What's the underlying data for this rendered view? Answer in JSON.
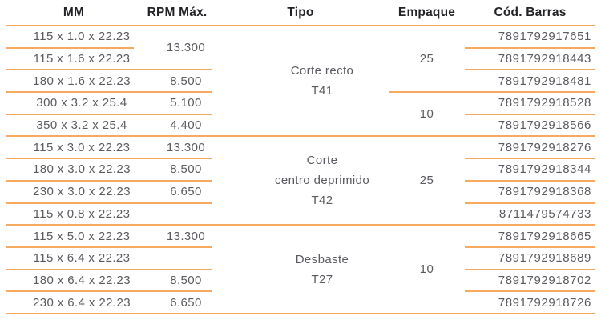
{
  "table": {
    "headers": {
      "mm": "MM",
      "rpm": "RPM Máx.",
      "tipo": "Tipo",
      "empaque": "Empaque",
      "barcode": "Cód. Barras"
    },
    "groups": [
      {
        "tipo": [
          "Corte recto",
          "T41"
        ],
        "empaque": [
          "25",
          "10"
        ],
        "rows": [
          {
            "mm": "115 x 1.0 x 22.23",
            "rpm": "13.300",
            "barcode": "7891792917651"
          },
          {
            "mm": "115 x 1.6 x 22.23",
            "barcode": "7891792918443"
          },
          {
            "mm": "180 x 1.6 x 22.23",
            "rpm": "8.500",
            "barcode": "7891792918481"
          },
          {
            "mm": "300 x 3.2 x 25.4",
            "rpm": "5.100",
            "barcode": "7891792918528"
          },
          {
            "mm": "350 x 3.2 x 25.4",
            "rpm": "4.400",
            "barcode": "7891792918566"
          }
        ]
      },
      {
        "tipo": [
          "Corte",
          "centro deprimido",
          "T42"
        ],
        "empaque": [
          "25"
        ],
        "rows": [
          {
            "mm": "115 x 3.0 x 22.23",
            "rpm": "13.300",
            "barcode": "7891792918276"
          },
          {
            "mm": "180 x 3.0 x 22.23",
            "rpm": "8.500",
            "barcode": "7891792918344"
          },
          {
            "mm": "230 x 3.0 x 22.23",
            "rpm": "6.650",
            "barcode": "7891792918368"
          },
          {
            "mm": "115 x 0.8 x 22.23",
            "rpm": "",
            "barcode": "8711479574733"
          }
        ]
      },
      {
        "tipo": [
          "Desbaste",
          "T27"
        ],
        "empaque": [
          "10"
        ],
        "rows": [
          {
            "mm": "115 x 5.0 x 22.23",
            "rpm": "13.300",
            "barcode": "7891792918665"
          },
          {
            "mm": "115 x 6.4 x 22.23",
            "rpm": "",
            "barcode": "7891792918689"
          },
          {
            "mm": "180 x 6.4 x 22.23",
            "rpm": "8.500",
            "barcode": "7891792918702"
          },
          {
            "mm": "230 x 6.4 x 22.23",
            "rpm": "6.650",
            "barcode": "7891792918726"
          }
        ]
      }
    ]
  },
  "colors": {
    "rule_line": "#F6A95F",
    "header_text": "#232327",
    "body_text": "#5A5B60"
  }
}
